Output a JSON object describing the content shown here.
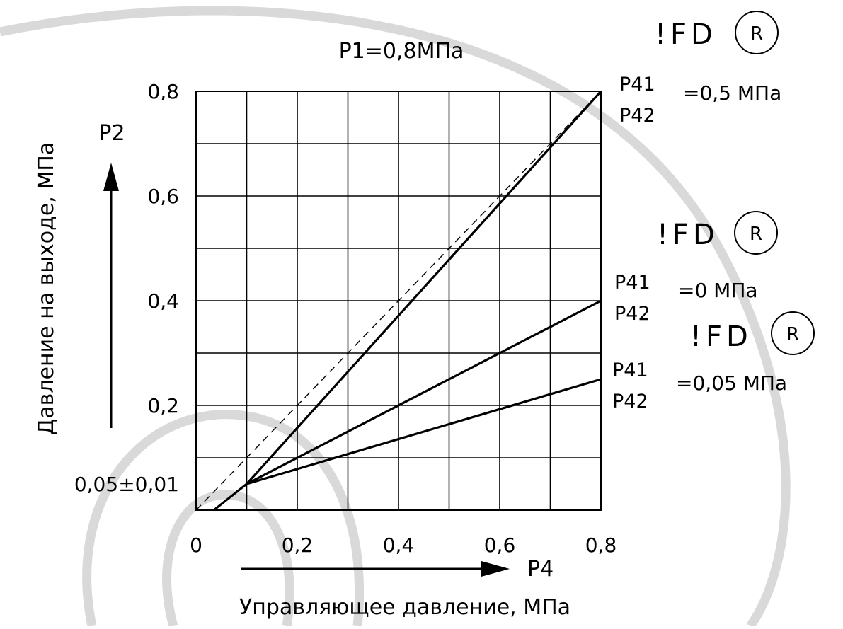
{
  "chart_data": {
    "type": "line",
    "title": "P1=0,8МПа",
    "xlabel": "Управляющее давление, МПа",
    "ylabel": "Давление на выходе, МПа",
    "x_arrow_label": "P4",
    "y_arrow_label": "P2",
    "xlim": [
      0.0,
      0.8
    ],
    "ylim": [
      0.0,
      0.8
    ],
    "grid": true,
    "x_ticks": [
      {
        "v": 0.0,
        "label": "0"
      },
      {
        "v": 0.2,
        "label": "0,2"
      },
      {
        "v": 0.4,
        "label": "0,4"
      },
      {
        "v": 0.6,
        "label": "0,6"
      },
      {
        "v": 0.8,
        "label": "0,8"
      }
    ],
    "y_ticks": [
      {
        "v": 0.2,
        "label": "0,2"
      },
      {
        "v": 0.4,
        "label": "0,4"
      },
      {
        "v": 0.6,
        "label": "0,6"
      },
      {
        "v": 0.8,
        "label": "0,8"
      },
      {
        "v": 0.05,
        "label": "0,05±0,01"
      }
    ],
    "series": [
      {
        "style": "solid",
        "x": [
          0.035,
          0.1,
          0.8
        ],
        "y": [
          0.0,
          0.05,
          0.8
        ]
      },
      {
        "style": "solid",
        "x": [
          0.1,
          0.8
        ],
        "y": [
          0.05,
          0.4
        ]
      },
      {
        "style": "solid",
        "x": [
          0.1,
          0.8
        ],
        "y": [
          0.05,
          0.25
        ]
      },
      {
        "style": "dashed",
        "x": [
          0.0,
          0.8
        ],
        "y": [
          0.0,
          0.8
        ]
      }
    ],
    "annotations": [
      {
        "mark": "!FD",
        "circled": "R",
        "p_top": "P41",
        "p_bottom": "P42",
        "value": "=0,5 МПа"
      },
      {
        "mark": "!FD",
        "circled": "R",
        "p_top": "P41",
        "p_bottom": "P42",
        "value": "=0 МПа"
      },
      {
        "mark": "!FD",
        "circled": "R",
        "p_top": "P41",
        "p_bottom": "P42",
        "value": "=0,05 МПа"
      }
    ]
  }
}
